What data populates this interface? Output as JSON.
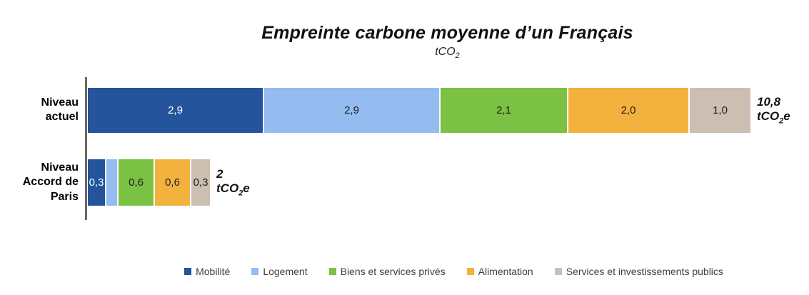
{
  "chart_data": {
    "type": "bar",
    "orientation": "horizontal",
    "stacked": true,
    "grid": false,
    "legend_position": "bottom",
    "title": "Empreinte carbone moyenne d’un Français",
    "unit_label": {
      "prefix": "tCO",
      "sub": "2"
    },
    "value_unit": {
      "prefix": "tCO",
      "sub": "2",
      "suffix": "e"
    },
    "categories": [
      "Niveau actuel",
      "Niveau Accord de Paris"
    ],
    "axis_max": 10.8,
    "series": [
      {
        "name": "Mobilité",
        "color": "#24549c",
        "label_color": "#ffffff",
        "values": [
          2.9,
          0.3
        ],
        "labels": [
          "2,9",
          "0,3"
        ]
      },
      {
        "name": "Logement",
        "color": "#95bcf0",
        "label_color": "#202020",
        "values": [
          2.9,
          0.2
        ],
        "labels": [
          "2,9",
          ""
        ]
      },
      {
        "name": "Biens et services privés",
        "color": "#7bc143",
        "label_color": "#202020",
        "values": [
          2.1,
          0.6
        ],
        "labels": [
          "2,1",
          "0,6"
        ]
      },
      {
        "name": "Alimentation",
        "color": "#f3b13e",
        "label_color": "#202020",
        "values": [
          2.0,
          0.6
        ],
        "labels": [
          "2,0",
          "0,6"
        ]
      },
      {
        "name": "Services et investissements publics",
        "color": "#ccbfb1",
        "label_color": "#202020",
        "values": [
          1.0,
          0.3
        ],
        "labels": [
          "1,0",
          "0,3"
        ]
      }
    ],
    "totals": [
      "10,8",
      "2"
    ]
  }
}
